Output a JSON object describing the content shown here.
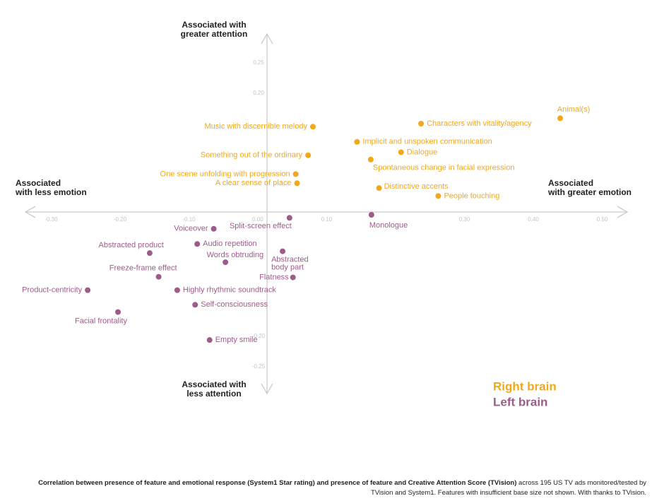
{
  "chart_data": {
    "type": "scatter",
    "axis_labels": {
      "top": [
        "Associated with",
        "greater attention"
      ],
      "bottom": [
        "Associated with",
        "less attention"
      ],
      "left": [
        "Associated",
        "with less emotion"
      ],
      "right": [
        "Associated",
        "with greater emotion"
      ]
    },
    "xlim": [
      -0.3743,
      0.5405
    ],
    "ylim": [
      -0.2942,
      0.307
    ],
    "xticks": [
      {
        "value": -0.3,
        "label": "-0.30"
      },
      {
        "value": -0.2,
        "label": "-0.20"
      },
      {
        "value": -0.1,
        "label": "-0.10"
      },
      {
        "value": 0,
        "label": "0.00"
      },
      {
        "value": 0.1,
        "label": "0.10"
      },
      {
        "value": 0.3,
        "label": "0.30"
      },
      {
        "value": 0.4,
        "label": "0.40"
      },
      {
        "value": 0.5,
        "label": "0.50"
      }
    ],
    "yticks": [
      0.25,
      {
        "value": 0.2,
        "label": "0.20"
      },
      {
        "value": -0.2,
        "label": "-0.20"
      },
      -0.25
    ],
    "series": [
      {
        "name": "Right brain",
        "color": "#f0a81c",
        "labels": [
          "Animal(s)",
          "Characters with vitality/agency",
          "Music with discernible melody",
          "Implicit and unspoken communication",
          "Dialogue",
          "Something out of the ordinary",
          "Spontaneous change in facial expression",
          "One scene unfolding with progression",
          "A clear sense of place",
          "Distinctive accents",
          "People touching"
        ],
        "x": [
          0.439,
          0.237,
          0.08,
          0.144,
          0.208,
          0.073,
          0.164,
          0.055,
          0.057,
          0.176,
          0.262
        ],
        "values": [
          0.159,
          0.15,
          0.145,
          0.12,
          0.103,
          0.098,
          0.091,
          0.067,
          0.052,
          0.044,
          0.031
        ]
      },
      {
        "name": "Left brain",
        "color": "#9e5b8a",
        "labels": [
          "Split-screen effect",
          "Monologue",
          "Voiceover",
          "Audio repetition",
          "Abstracted product",
          "Abstracted body part",
          "Words obtruding",
          "Freeze-frame effect",
          "Flatness",
          "Product-centricity",
          "Highly rhythmic soundtrack",
          "Self-consciousness",
          "Facial frontality",
          "Empty smile"
        ],
        "x": [
          0.046,
          0.165,
          -0.064,
          -0.088,
          -0.157,
          0.036,
          -0.047,
          -0.144,
          0.051,
          -0.247,
          -0.117,
          -0.091,
          -0.203,
          -0.07
        ],
        "values": [
          -0.005,
          0.0,
          -0.023,
          -0.048,
          -0.063,
          -0.06,
          -0.078,
          -0.102,
          -0.103,
          -0.124,
          -0.124,
          -0.148,
          -0.16,
          -0.206
        ]
      }
    ],
    "caption_bold": "Correlation between presence of feature and emotional response (System1 Star rating) and presence of feature and Creative Attention Score (TVision)",
    "caption": " across 195 US TV ads monitored/tested by TVision and System1. Features with insufficient base size not shown. With thanks to TVision."
  }
}
